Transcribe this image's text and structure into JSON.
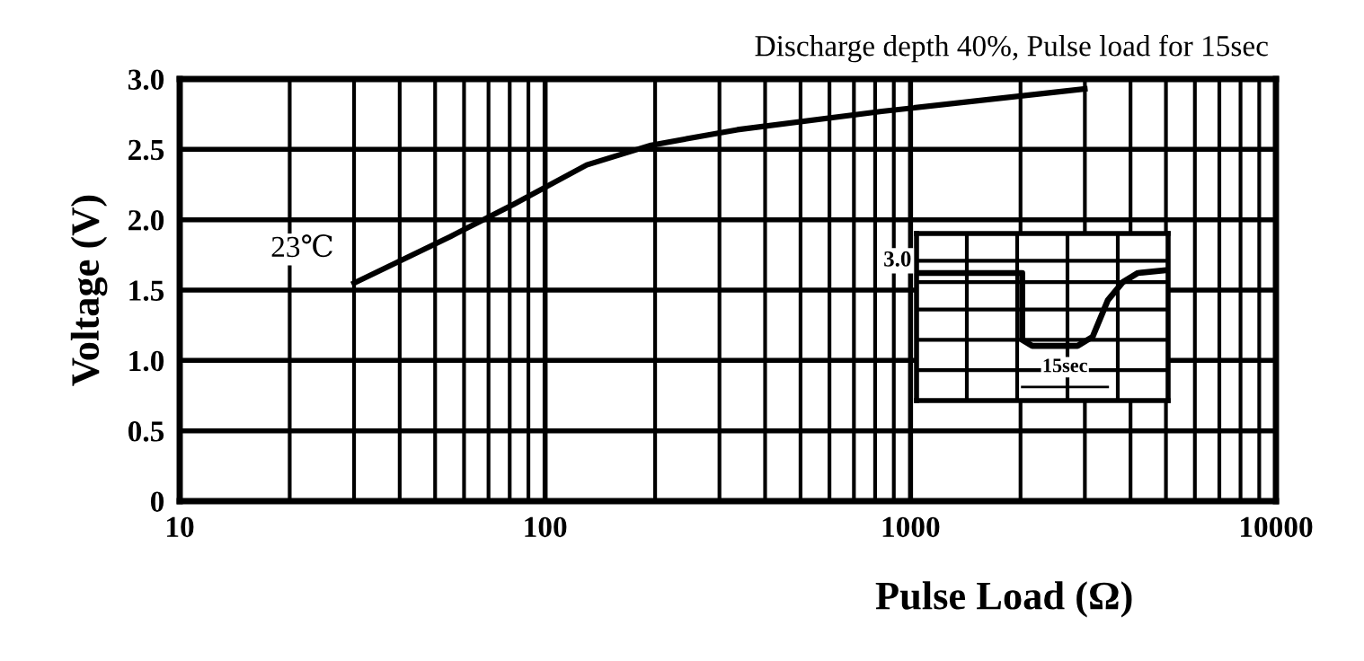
{
  "chart_data": {
    "type": "line",
    "title": "Discharge depth 40%, Pulse load for 15sec",
    "xlabel": "Pulse Load (Ω)",
    "ylabel": "Voltage (V)",
    "x": [
      30,
      55,
      82,
      130,
      195,
      336,
      834,
      3000
    ],
    "series": [
      {
        "color": "#000000",
        "values": [
          1.55,
          1.88,
          2.11,
          2.39,
          2.53,
          2.64,
          2.77,
          2.93
        ]
      }
    ],
    "log": "x",
    "xlim": [
      10,
      10000
    ],
    "xticks": [
      10,
      100,
      1000,
      10000
    ],
    "ylim": [
      0,
      3.0
    ],
    "yticks": [
      0,
      0.5,
      {
        "value": 1.0,
        "label": "1.0"
      },
      1.5,
      {
        "value": 2.0,
        "label": "2.0"
      },
      2.5,
      {
        "value": 3.0,
        "label": "3.0"
      }
    ],
    "grid": true,
    "marker": "none",
    "line_style": "solid",
    "annotations": [
      {
        "text": "23℃",
        "x": 30,
        "y": 1.55
      },
      "3.0",
      "15sec"
    ]
  }
}
